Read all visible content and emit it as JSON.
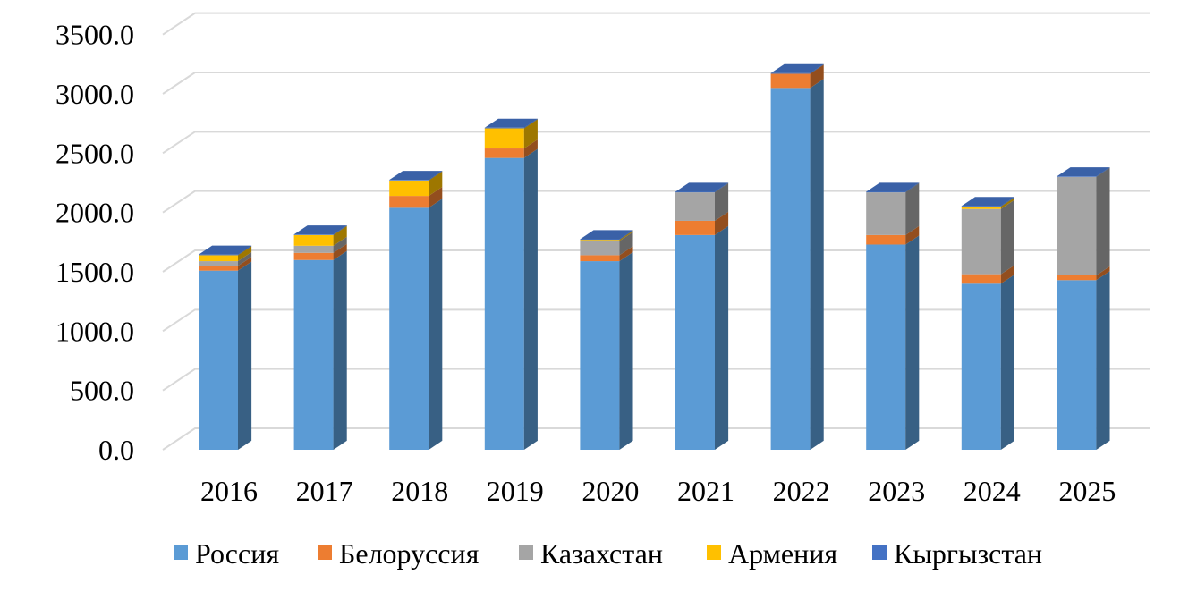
{
  "chart_data": {
    "type": "bar",
    "stacked": true,
    "style": "3d-column",
    "title": "",
    "xlabel": "",
    "ylabel": "",
    "categories": [
      "2016",
      "2017",
      "2018",
      "2019",
      "2020",
      "2021",
      "2022",
      "2023",
      "2024",
      "2025"
    ],
    "ylim": [
      0,
      3500
    ],
    "yticks": [
      0,
      500,
      1000,
      1500,
      2000,
      2500,
      3000,
      3500
    ],
    "ytick_labels": [
      "0.0",
      "500.0",
      "1000.0",
      "1500.0",
      "2000.0",
      "2500.0",
      "3000.0",
      "3500.0"
    ],
    "grid": true,
    "legend_position": "bottom",
    "series": [
      {
        "name": "Россия",
        "color": "#5B9BD5",
        "values": [
          1510,
          1600,
          2040,
          2460,
          1590,
          1810,
          3050,
          1730,
          1400,
          1430
        ]
      },
      {
        "name": "Белоруссия",
        "color": "#ED7D31",
        "values": [
          40,
          60,
          100,
          80,
          50,
          120,
          120,
          80,
          80,
          40
        ]
      },
      {
        "name": "Казахстан",
        "color": "#A5A5A5",
        "values": [
          40,
          60,
          0,
          0,
          120,
          240,
          0,
          360,
          550,
          830
        ]
      },
      {
        "name": "Армения",
        "color": "#FFC000",
        "values": [
          50,
          90,
          130,
          170,
          10,
          0,
          0,
          0,
          20,
          0
        ]
      },
      {
        "name": "Кыргызстан",
        "color": "#4472C4",
        "values": [
          5,
          5,
          5,
          5,
          5,
          5,
          5,
          5,
          5,
          5
        ]
      }
    ]
  }
}
